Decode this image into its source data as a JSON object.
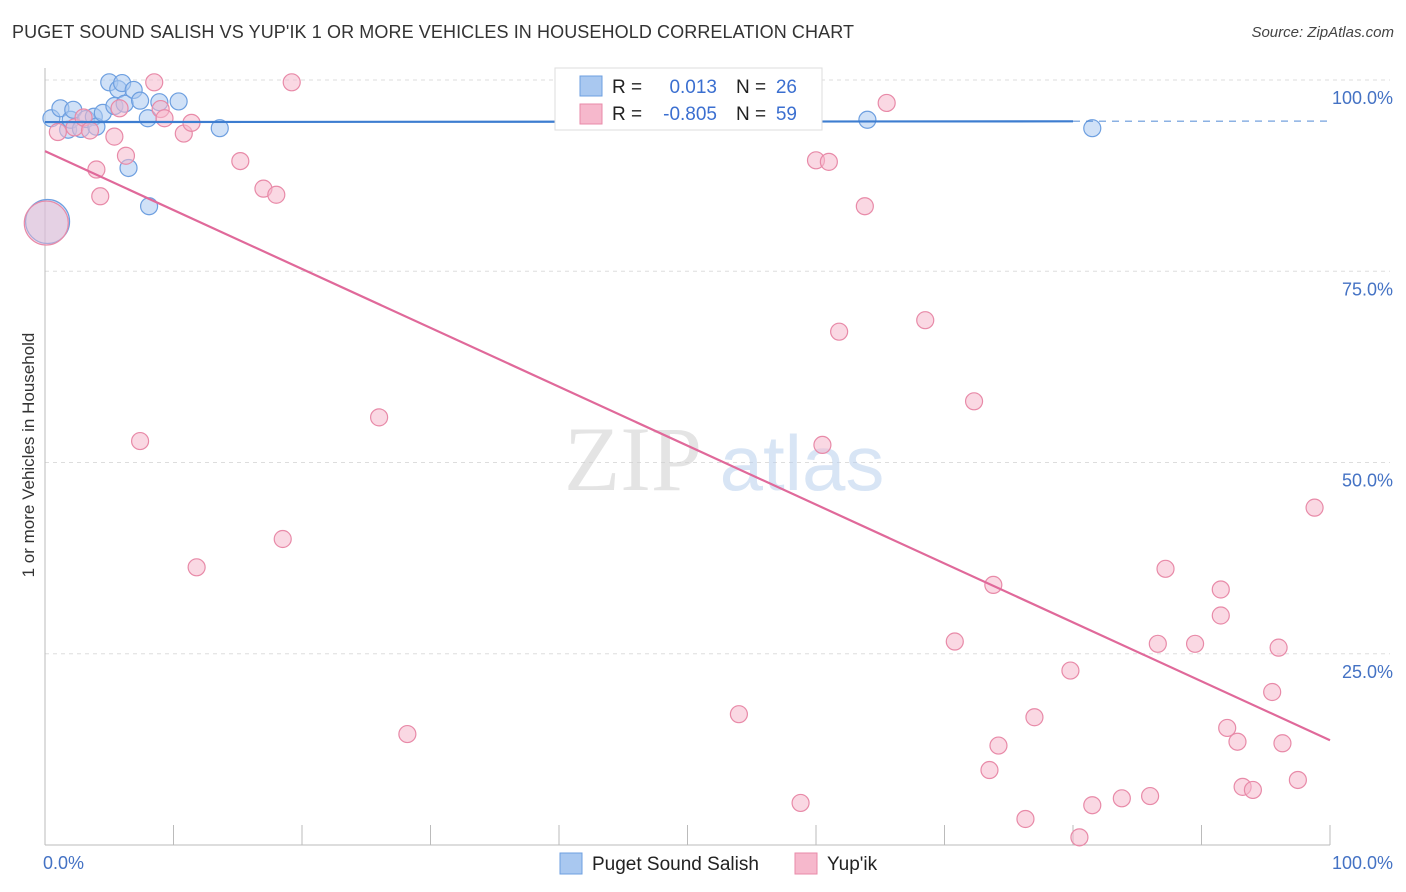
{
  "title": "PUGET SOUND SALISH VS YUP'IK 1 OR MORE VEHICLES IN HOUSEHOLD CORRELATION CHART",
  "source": "Source: ZipAtlas.com",
  "watermark": {
    "zip": "ZIP",
    "atlas": "atlas"
  },
  "colors": {
    "blue_fill": "#a9c8f0",
    "blue_stroke": "#6d9fe0",
    "blue_line": "#3d7dd0",
    "pink_fill": "#f6b8cc",
    "pink_stroke": "#e88aa8",
    "pink_line": "#e0699a",
    "tick_blue": "#4472c4",
    "grid": "#dddddd"
  },
  "legend": {
    "rows": [
      {
        "r_label": "R =",
        "r_value": "0.013",
        "n_label": "N =",
        "n_value": "26"
      },
      {
        "r_label": "R =",
        "r_value": "-0.805",
        "n_label": "N =",
        "n_value": "59"
      }
    ]
  },
  "bottom_legend": [
    "Puget Sound Salish",
    "Yup'ik"
  ],
  "chart_data": {
    "type": "scatter",
    "title": "PUGET SOUND SALISH VS YUP'IK 1 OR MORE VEHICLES IN HOUSEHOLD CORRELATION CHART",
    "xlabel": "",
    "ylabel": "1 or more Vehicles in Household",
    "xlim": [
      0,
      100
    ],
    "ylim": [
      0,
      100
    ],
    "x_ticks": [
      "0.0%",
      "100.0%"
    ],
    "y_ticks": [
      "25.0%",
      "50.0%",
      "75.0%",
      "100.0%"
    ],
    "y_tick_values": [
      25,
      50,
      75,
      100
    ],
    "grid": true,
    "legend_position": "top-center",
    "series": [
      {
        "name": "Puget Sound Salish",
        "trend": {
          "x": [
            0,
            80
          ],
          "y": [
            94.5,
            94.6
          ],
          "dashed_to": 100
        },
        "points": [
          {
            "x": 0.2,
            "y": 81.5,
            "big": true
          },
          {
            "x": 0.5,
            "y": 95.0
          },
          {
            "x": 1.2,
            "y": 96.3
          },
          {
            "x": 1.8,
            "y": 93.5
          },
          {
            "x": 2.0,
            "y": 94.8
          },
          {
            "x": 2.2,
            "y": 96.1
          },
          {
            "x": 2.8,
            "y": 93.6
          },
          {
            "x": 3.2,
            "y": 94.9
          },
          {
            "x": 3.8,
            "y": 95.2
          },
          {
            "x": 4.0,
            "y": 93.9
          },
          {
            "x": 4.5,
            "y": 95.7
          },
          {
            "x": 5.0,
            "y": 99.7
          },
          {
            "x": 5.4,
            "y": 96.6
          },
          {
            "x": 5.7,
            "y": 98.8
          },
          {
            "x": 6.0,
            "y": 99.6
          },
          {
            "x": 6.2,
            "y": 96.9
          },
          {
            "x": 6.5,
            "y": 88.5
          },
          {
            "x": 6.9,
            "y": 98.7
          },
          {
            "x": 7.4,
            "y": 97.3
          },
          {
            "x": 8.0,
            "y": 95.0
          },
          {
            "x": 8.1,
            "y": 83.5
          },
          {
            "x": 8.9,
            "y": 97.1
          },
          {
            "x": 10.4,
            "y": 97.2
          },
          {
            "x": 13.6,
            "y": 93.7
          },
          {
            "x": 64.0,
            "y": 94.8
          },
          {
            "x": 81.5,
            "y": 93.7
          }
        ]
      },
      {
        "name": "Yup'ik",
        "trend": {
          "x": [
            0,
            100
          ],
          "y": [
            90.7,
            13.7
          ]
        },
        "points": [
          {
            "x": 0.1,
            "y": 81.3,
            "big": true
          },
          {
            "x": 1.0,
            "y": 93.2
          },
          {
            "x": 2.3,
            "y": 93.8
          },
          {
            "x": 3.0,
            "y": 95.1
          },
          {
            "x": 3.5,
            "y": 93.4
          },
          {
            "x": 4.0,
            "y": 88.3
          },
          {
            "x": 4.3,
            "y": 84.8
          },
          {
            "x": 5.8,
            "y": 96.3
          },
          {
            "x": 5.4,
            "y": 92.6
          },
          {
            "x": 6.3,
            "y": 90.1
          },
          {
            "x": 7.4,
            "y": 52.8
          },
          {
            "x": 8.5,
            "y": 99.7
          },
          {
            "x": 9.0,
            "y": 96.2
          },
          {
            "x": 9.3,
            "y": 95.0
          },
          {
            "x": 10.8,
            "y": 93.0
          },
          {
            "x": 11.4,
            "y": 94.4
          },
          {
            "x": 11.8,
            "y": 36.3
          },
          {
            "x": 15.2,
            "y": 89.4
          },
          {
            "x": 17.0,
            "y": 85.8
          },
          {
            "x": 18.0,
            "y": 85.0
          },
          {
            "x": 18.5,
            "y": 40.0
          },
          {
            "x": 19.2,
            "y": 99.7
          },
          {
            "x": 26.0,
            "y": 55.9
          },
          {
            "x": 28.2,
            "y": 14.5
          },
          {
            "x": 54.0,
            "y": 17.1
          },
          {
            "x": 58.8,
            "y": 5.5
          },
          {
            "x": 60.0,
            "y": 89.5
          },
          {
            "x": 60.5,
            "y": 52.3
          },
          {
            "x": 61.0,
            "y": 89.3
          },
          {
            "x": 61.8,
            "y": 67.1
          },
          {
            "x": 63.8,
            "y": 83.5
          },
          {
            "x": 65.5,
            "y": 97.0
          },
          {
            "x": 68.5,
            "y": 68.6
          },
          {
            "x": 70.8,
            "y": 26.6
          },
          {
            "x": 72.3,
            "y": 58.0
          },
          {
            "x": 73.5,
            "y": 9.8
          },
          {
            "x": 73.8,
            "y": 34.0
          },
          {
            "x": 74.2,
            "y": 13.0
          },
          {
            "x": 76.3,
            "y": 3.4
          },
          {
            "x": 77.0,
            "y": 16.7
          },
          {
            "x": 79.8,
            "y": 22.8
          },
          {
            "x": 80.5,
            "y": 1.0
          },
          {
            "x": 81.5,
            "y": 5.2
          },
          {
            "x": 83.8,
            "y": 6.1
          },
          {
            "x": 86.0,
            "y": 6.4
          },
          {
            "x": 86.6,
            "y": 26.3
          },
          {
            "x": 87.2,
            "y": 36.1
          },
          {
            "x": 89.5,
            "y": 26.3
          },
          {
            "x": 91.5,
            "y": 33.4
          },
          {
            "x": 91.5,
            "y": 30.0
          },
          {
            "x": 92.0,
            "y": 15.3
          },
          {
            "x": 92.8,
            "y": 13.5
          },
          {
            "x": 93.2,
            "y": 7.6
          },
          {
            "x": 94.0,
            "y": 7.2
          },
          {
            "x": 95.5,
            "y": 20.0
          },
          {
            "x": 96.0,
            "y": 25.8
          },
          {
            "x": 96.3,
            "y": 13.3
          },
          {
            "x": 98.8,
            "y": 44.1
          },
          {
            "x": 97.5,
            "y": 8.5
          }
        ]
      }
    ]
  }
}
